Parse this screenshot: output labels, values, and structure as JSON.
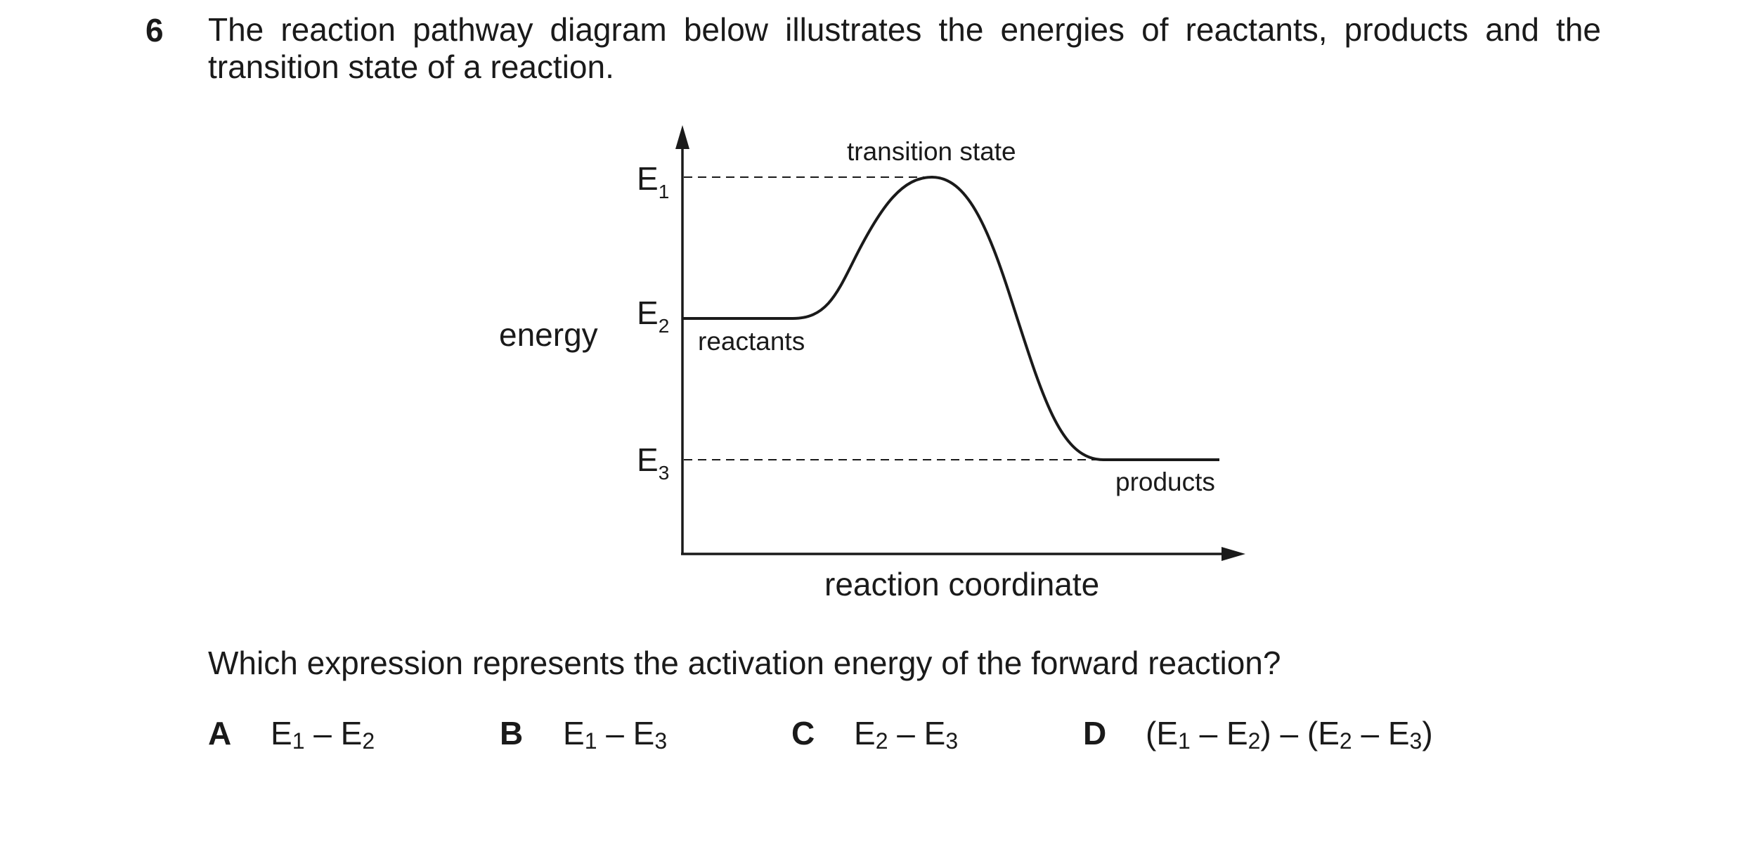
{
  "question": {
    "number": "6",
    "stem": "The reaction pathway diagram below illustrates the energies of reactants, products and the transition state of a reaction.",
    "prompt": "Which expression represents the activation energy of the forward reaction?"
  },
  "diagram": {
    "y_axis_label": "energy",
    "x_axis_label": "reaction coordinate",
    "levels": [
      {
        "symbol": "E",
        "sub": "1"
      },
      {
        "symbol": "E",
        "sub": "2"
      },
      {
        "symbol": "E",
        "sub": "3"
      }
    ],
    "labels": {
      "transition_state": "transition state",
      "reactants": "reactants",
      "products": "products"
    }
  },
  "options": [
    {
      "letter": "A",
      "parts": [
        {
          "t": "E"
        },
        {
          "s": "1"
        },
        {
          "t": " – E"
        },
        {
          "s": "2"
        }
      ]
    },
    {
      "letter": "B",
      "parts": [
        {
          "t": "E"
        },
        {
          "s": "1"
        },
        {
          "t": " – E"
        },
        {
          "s": "3"
        }
      ]
    },
    {
      "letter": "C",
      "parts": [
        {
          "t": "E"
        },
        {
          "s": "2"
        },
        {
          "t": " – E"
        },
        {
          "s": "3"
        }
      ]
    },
    {
      "letter": "D",
      "parts": [
        {
          "t": "(E"
        },
        {
          "s": "1"
        },
        {
          "t": " – E"
        },
        {
          "s": "2"
        },
        {
          "t": ") – (E"
        },
        {
          "s": "2"
        },
        {
          "t": " – E"
        },
        {
          "s": "3"
        },
        {
          "t": ")"
        }
      ]
    }
  ]
}
